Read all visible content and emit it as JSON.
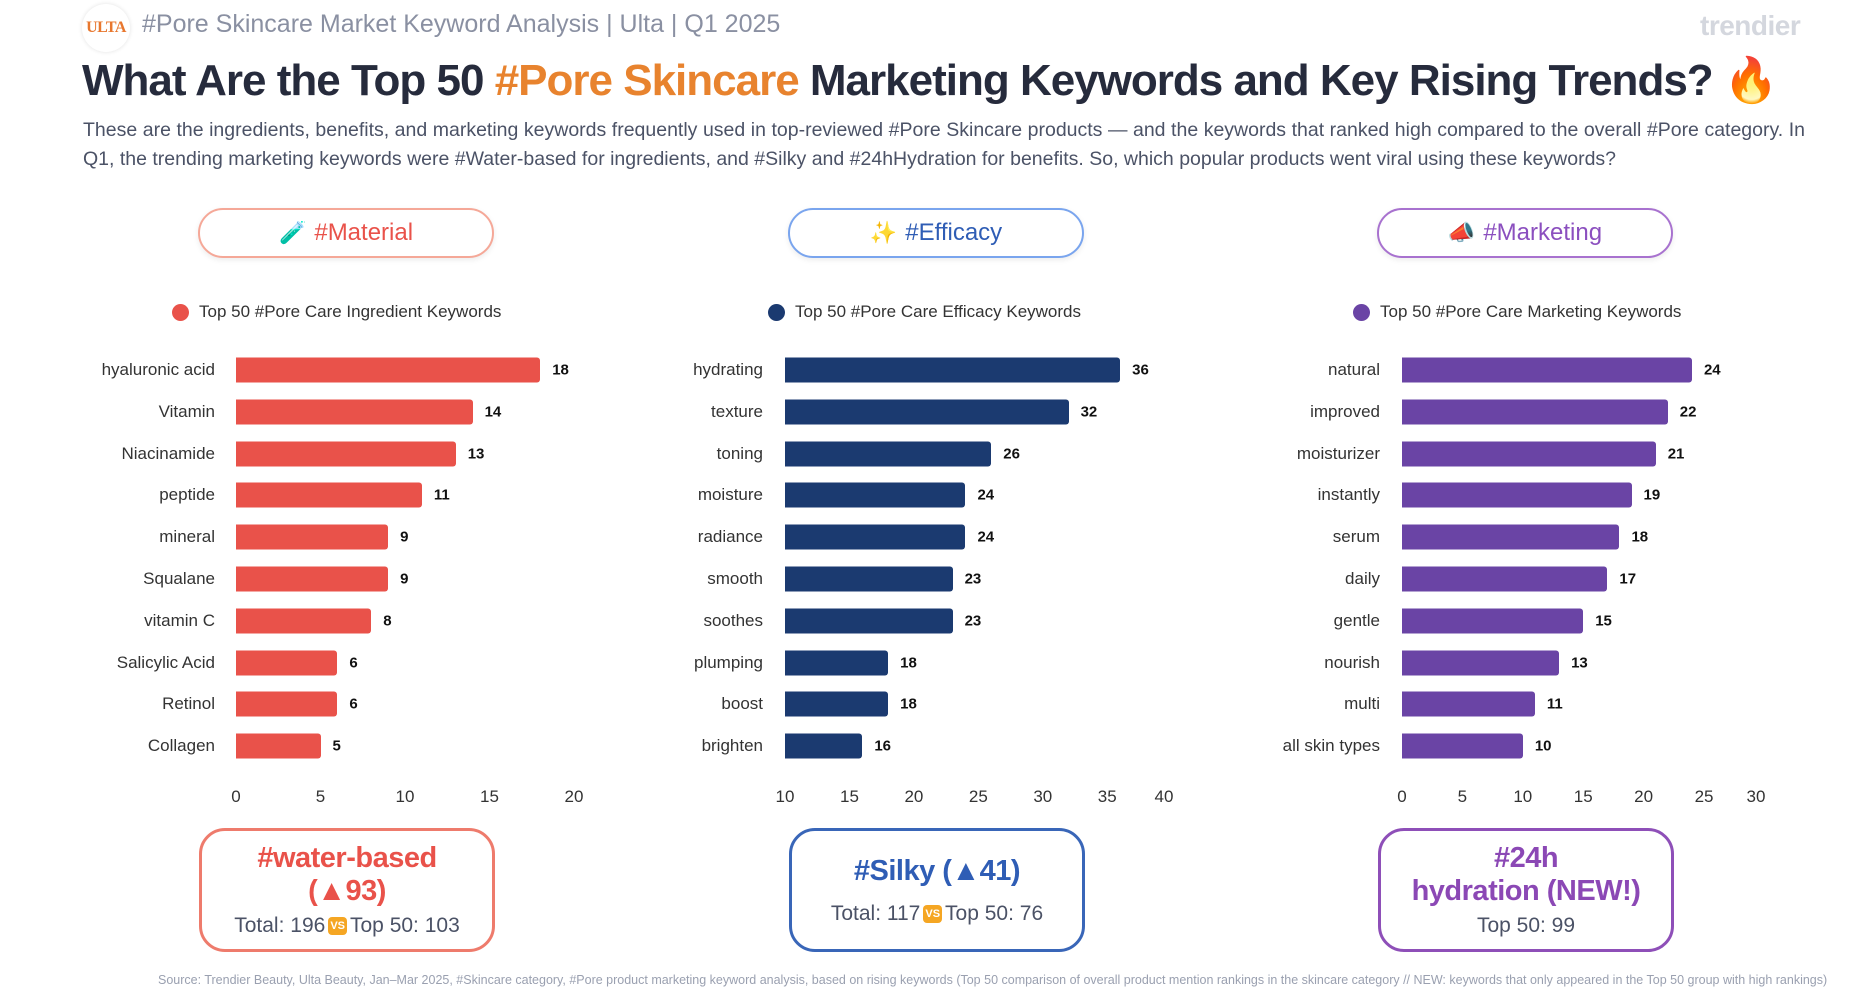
{
  "header": {
    "logo_text": "ULTA",
    "subtitle": "#Pore Skincare Market Keyword Analysis | Ulta | Q1 2025",
    "brand": "trendier"
  },
  "title": {
    "part1": "What Are the Top 50 ",
    "highlight": "#Pore Skincare",
    "part2": " Marketing Keywords and Key Rising Trends? ",
    "emoji": "🔥"
  },
  "intro": "These are the ingredients, benefits, and marketing keywords frequently used in top-reviewed #Pore Skincare products — and the keywords that ranked high compared to the overall #Pore category. In Q1, the trending marketing keywords were #Water-based for ingredients, and #Silky and #24hHydration for benefits. So, which popular products went viral using these keywords?",
  "colors": {
    "material": "#e9524a",
    "efficacy": "#1b3a70",
    "marketing": "#6a44a5",
    "material_border": "#f29a8a",
    "efficacy_border": "#5b8de8",
    "marketing_border": "#9b5cc4",
    "title_highlight": "#e8832e"
  },
  "sections": [
    {
      "pill_icon": "🧪",
      "pill_label": "#Material",
      "callout": {
        "keyword": "#water-based",
        "change": "(▲93)",
        "sub_total": "Total: 196",
        "vs": "VS",
        "sub_top50": "Top 50: 103"
      }
    },
    {
      "pill_icon": "✨",
      "pill_label": "#Efficacy",
      "callout": {
        "keyword": "#Silky (▲41)",
        "sub_total": "Total: 117",
        "vs": "VS",
        "sub_top50": "Top 50: 76"
      }
    },
    {
      "pill_icon": "📣",
      "pill_label": "#Marketing",
      "callout": {
        "keyword": "#24h",
        "keyword2": "hydration (NEW!)",
        "sub_top50": "Top 50: 99"
      }
    }
  ],
  "chart_data": [
    {
      "type": "bar",
      "orientation": "horizontal",
      "legend": "Top 50 #Pore Care Ingredient Keywords",
      "legend_position": "top",
      "categories": [
        "hyaluronic acid",
        "Vitamin",
        "Niacinamide",
        "peptide",
        "mineral",
        "Squalane",
        "vitamin C",
        "Salicylic Acid",
        "Retinol",
        "Collagen"
      ],
      "values": [
        18,
        14,
        13,
        11,
        9,
        9,
        8,
        6,
        6,
        5
      ],
      "xlim": [
        0,
        20
      ],
      "xticks": [
        0,
        5,
        10,
        15,
        20
      ],
      "grid": false
    },
    {
      "type": "bar",
      "orientation": "horizontal",
      "legend": "Top 50 #Pore Care Efficacy Keywords",
      "legend_position": "top",
      "categories": [
        "hydrating",
        "texture",
        "toning",
        "moisture",
        "radiance",
        "smooth",
        "soothes",
        "plumping",
        "boost",
        "brighten"
      ],
      "values": [
        36,
        32,
        26,
        24,
        24,
        23,
        23,
        18,
        18,
        16
      ],
      "xlim": [
        10,
        40
      ],
      "xticks": [
        10,
        15,
        20,
        25,
        30,
        35,
        40
      ],
      "grid": false
    },
    {
      "type": "bar",
      "orientation": "horizontal",
      "legend": "Top 50 #Pore Care Marketing Keywords",
      "legend_position": "top",
      "categories": [
        "natural",
        "improved",
        "moisturizer",
        "instantly",
        "serum",
        "daily",
        "gentle",
        "nourish",
        "multi",
        "all skin types"
      ],
      "values": [
        24,
        22,
        21,
        19,
        18,
        17,
        15,
        13,
        11,
        10
      ],
      "xlim": [
        0,
        30
      ],
      "xticks": [
        0,
        5,
        10,
        15,
        20,
        25,
        30
      ],
      "grid": false
    }
  ],
  "source": "Source: Trendier Beauty, Ulta Beauty, Jan–Mar 2025, #Skincare category, #Pore product marketing keyword analysis, based on rising keywords (Top 50 comparison of overall product mention rankings in the skincare category // NEW: keywords that only appeared in the Top 50 group with high rankings)"
}
